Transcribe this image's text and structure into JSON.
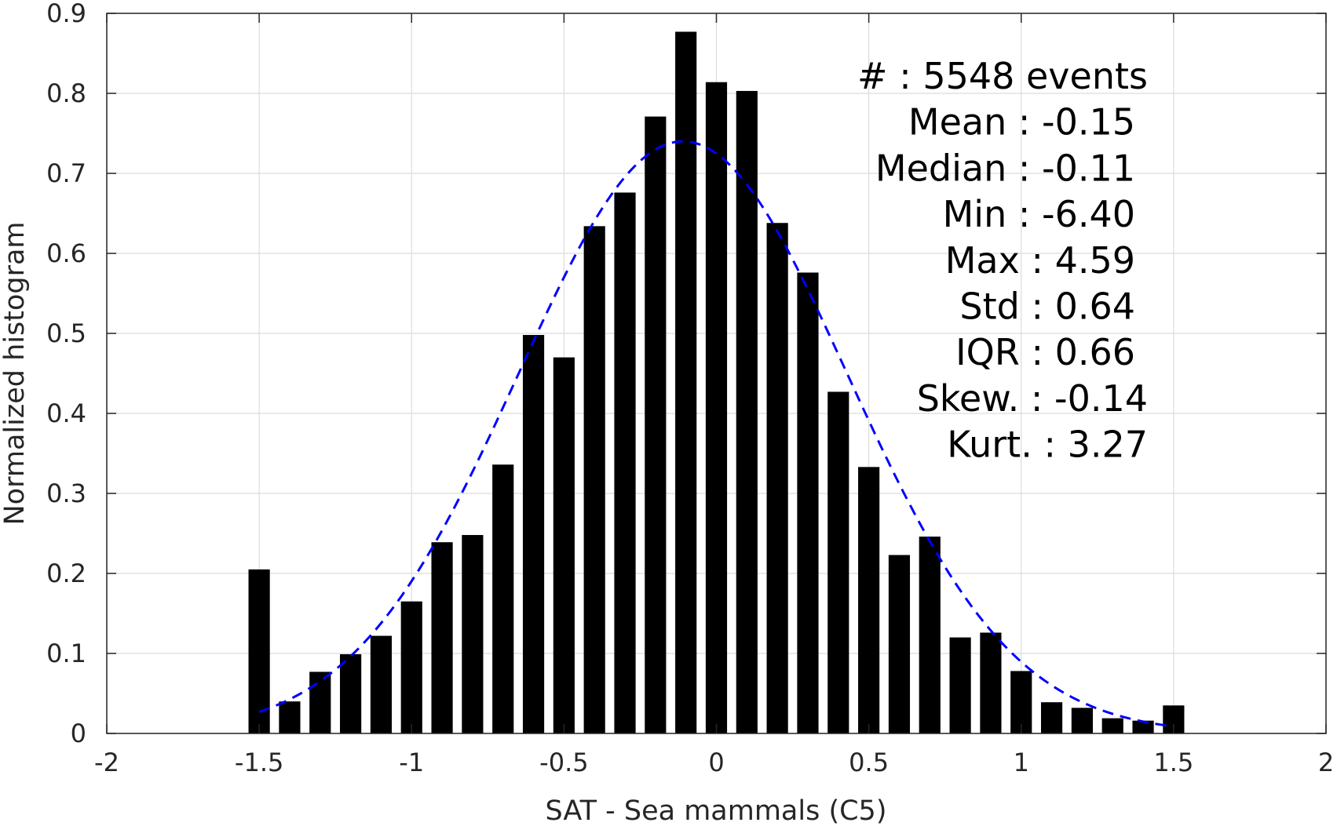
{
  "chart_data": {
    "type": "bar",
    "title": "",
    "xlabel": "SAT - Sea mammals (C5)",
    "ylabel": "Normalized histogram",
    "xlim": [
      -2,
      2
    ],
    "ylim": [
      0,
      0.9
    ],
    "xticks": [
      -2,
      -1.5,
      -1,
      -0.5,
      0,
      0.5,
      1,
      1.5,
      2
    ],
    "xtick_labels": [
      "-2",
      "-1.5",
      "-1",
      "-0.5",
      "0",
      "0.5",
      "1",
      "1.5",
      "2"
    ],
    "yticks": [
      0,
      0.1,
      0.2,
      0.3,
      0.4,
      0.5,
      0.6,
      0.7,
      0.8,
      0.9
    ],
    "ytick_labels": [
      "0",
      "0.1",
      "0.2",
      "0.3",
      "0.4",
      "0.5",
      "0.6",
      "0.7",
      "0.8",
      "0.9"
    ],
    "grid": true,
    "bar_color": "#000000",
    "bin_width": 0.1,
    "x": [
      -1.5,
      -1.4,
      -1.3,
      -1.2,
      -1.1,
      -1.0,
      -0.9,
      -0.8,
      -0.7,
      -0.6,
      -0.5,
      -0.4,
      -0.3,
      -0.2,
      -0.1,
      0.0,
      0.1,
      0.2,
      0.3,
      0.4,
      0.5,
      0.6,
      0.7,
      0.8,
      0.9,
      1.0,
      1.1,
      1.2,
      1.3,
      1.4,
      1.5
    ],
    "values": [
      0.205,
      0.04,
      0.077,
      0.099,
      0.122,
      0.165,
      0.239,
      0.248,
      0.336,
      0.498,
      0.47,
      0.634,
      0.676,
      0.771,
      0.877,
      0.814,
      0.803,
      0.638,
      0.576,
      0.427,
      0.333,
      0.223,
      0.246,
      0.12,
      0.126,
      0.078,
      0.039,
      0.032,
      0.019,
      0.016,
      0.035
    ],
    "fit_curve": {
      "style": "dashed",
      "color": "#0000ff",
      "mean": -0.11,
      "std": 0.54,
      "peak": 0.74,
      "x_range": [
        -1.5,
        1.5
      ]
    },
    "annotation": {
      "lines": [
        "#  : 5548 events",
        "Mean : -0.15",
        "Median : -0.11",
        "Min : -6.40",
        "Max : 4.59",
        "Std : 0.64",
        "IQR : 0.66",
        "Skew. : -0.14",
        "Kurt. : 3.27"
      ]
    }
  }
}
